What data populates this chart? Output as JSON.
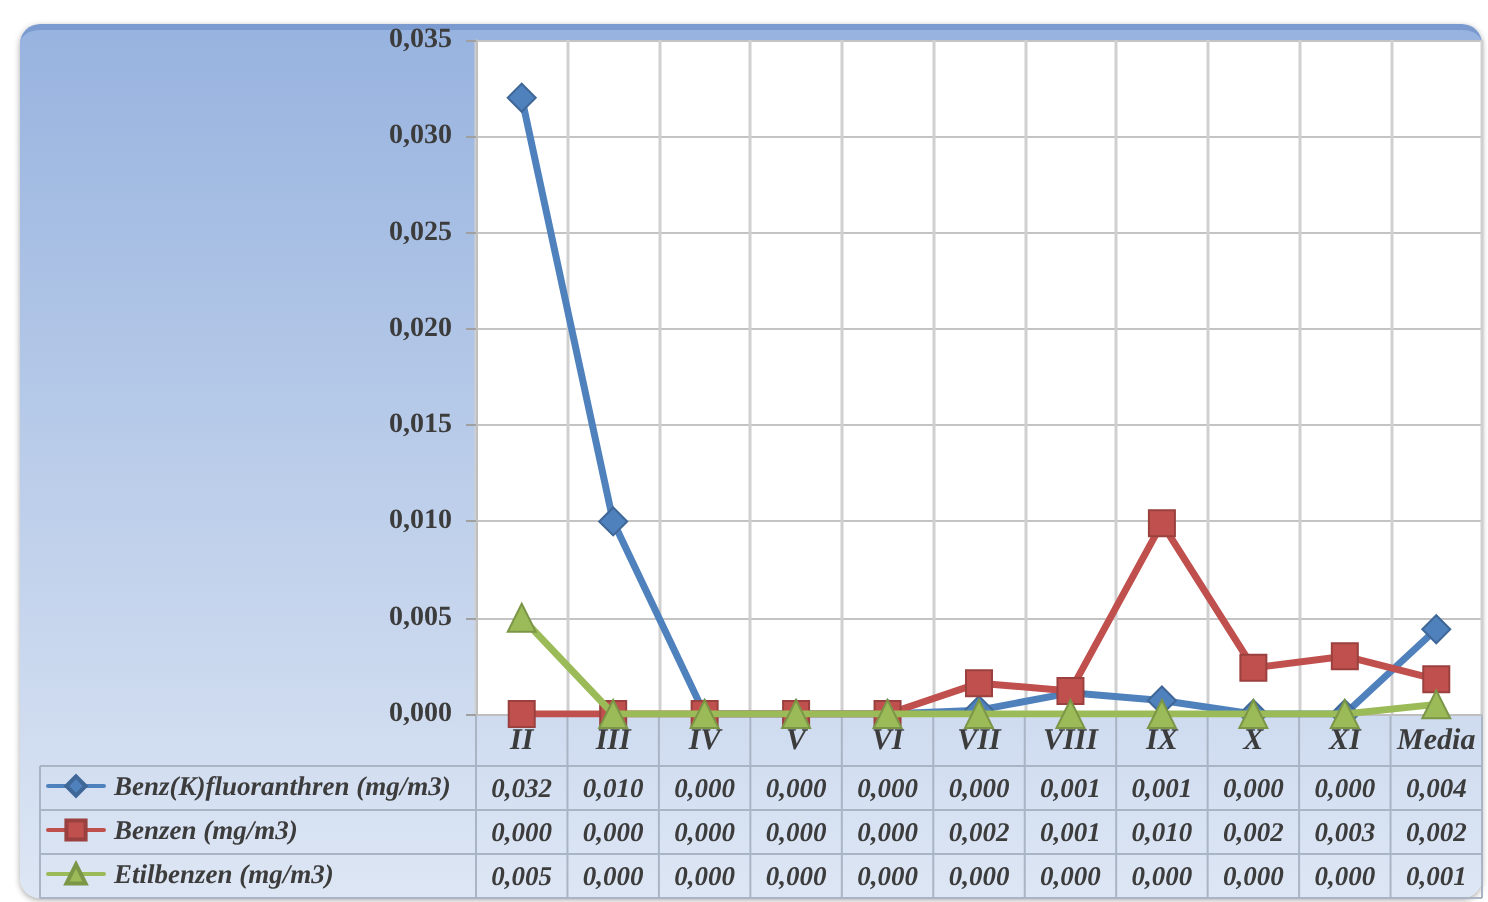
{
  "chart_data": {
    "type": "line",
    "categories": [
      "II",
      "III",
      "IV",
      "V",
      "VI",
      "VII",
      "VIII",
      "IX",
      "X",
      "XI",
      "Media"
    ],
    "series": [
      {
        "name": "Benz(K)fluoranthren (mg/m3)",
        "color": "#4f81bd",
        "marker": "diamond",
        "values": [
          0.032,
          0.01,
          0,
          0,
          0,
          0.0002,
          0.0011,
          0.0007,
          0,
          0,
          0.0044
        ],
        "value_labels": [
          "0,032",
          "0,010",
          "0,000",
          "0,000",
          "0,000",
          "0,000",
          "0,001",
          "0,001",
          "0,000",
          "0,000",
          "0,004"
        ]
      },
      {
        "name": "Benzen (mg/m3)",
        "color": "#c0504d",
        "marker": "square",
        "values": [
          0,
          0,
          0,
          0,
          0,
          0.0016,
          0.0012,
          0.0099,
          0.0024,
          0.003,
          0.0018
        ],
        "value_labels": [
          "0,000",
          "0,000",
          "0,000",
          "0,000",
          "0,000",
          "0,002",
          "0,001",
          "0,010",
          "0,002",
          "0,003",
          "0,002"
        ]
      },
      {
        "name": "Etilbenzen (mg/m3)",
        "color": "#9bbb59",
        "marker": "triangle",
        "values": [
          0.005,
          0,
          0,
          0,
          0,
          0,
          0,
          0,
          0,
          0,
          0.0005
        ],
        "value_labels": [
          "0,005",
          "0,000",
          "0,000",
          "0,000",
          "0,000",
          "0,000",
          "0,000",
          "0,000",
          "0,000",
          "0,000",
          "0,001"
        ]
      }
    ],
    "ylim": [
      0,
      0.035
    ],
    "yticks": [
      {
        "value": 0,
        "label": "0,000"
      },
      {
        "value": 0.005,
        "label": "0,005"
      },
      {
        "value": 0.01,
        "label": "0,010"
      },
      {
        "value": 0.015,
        "label": "0,015"
      },
      {
        "value": 0.02,
        "label": "0,020"
      },
      {
        "value": 0.025,
        "label": "0,025"
      },
      {
        "value": 0.03,
        "label": "0,030"
      },
      {
        "value": 0.035,
        "label": "0,035"
      }
    ],
    "grid": true,
    "legend": "bottom left",
    "line_style": "solid"
  }
}
